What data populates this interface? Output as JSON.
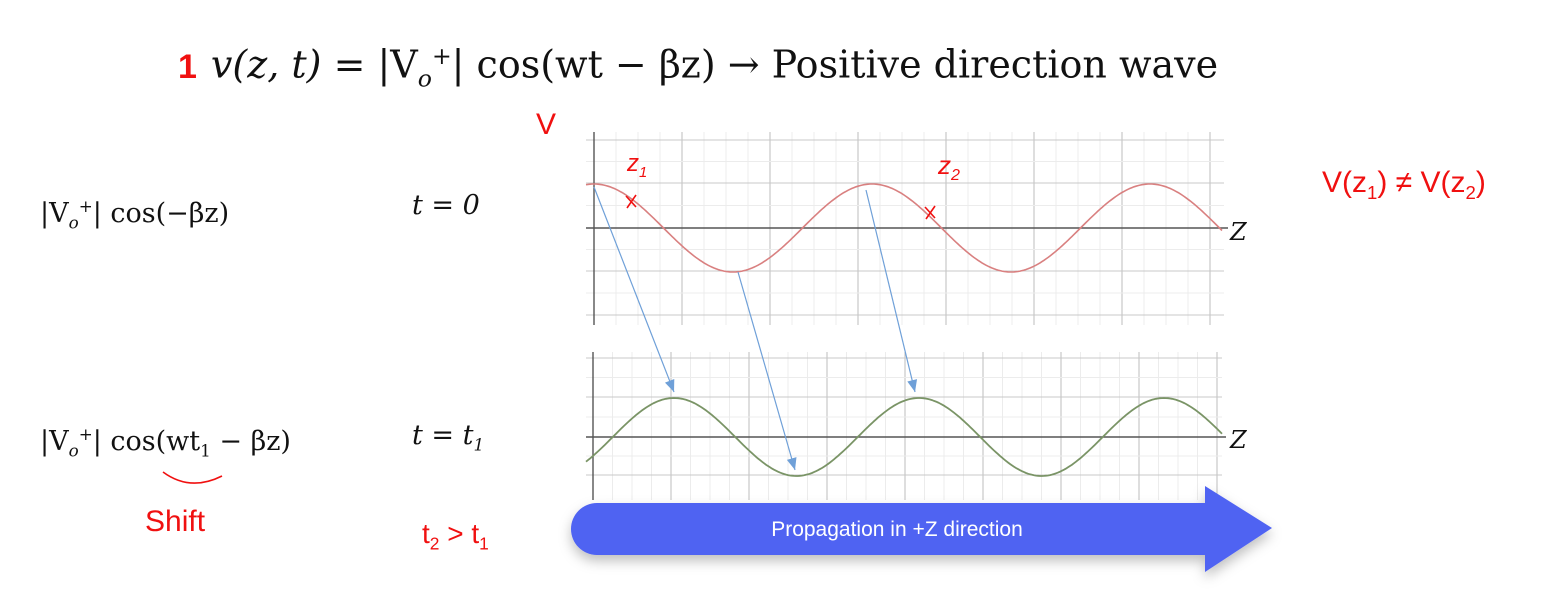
{
  "title": {
    "number": "1",
    "lhs": "v(z, t)",
    "equals": " = |V",
    "sub": "o",
    "sup": "+",
    "rhs": "| cos(wt − βz) → ",
    "description": "Positive direction wave"
  },
  "axis_label_v": "V",
  "axis_label_z": "Z",
  "rows": [
    {
      "expr_pre": "|V",
      "sub": "o",
      "sup": "+",
      "expr_post": "| cos(−βz)",
      "time": "t = 0"
    },
    {
      "expr_pre": "|V",
      "sub": "o",
      "sup": "+",
      "expr_mid": "| cos(wt",
      "expr_sub": "1",
      "expr_post": " − βz)",
      "time_pre": "t = t",
      "time_sub": "1"
    }
  ],
  "annotations": {
    "shift": "Shift",
    "t_compare": {
      "a": "t",
      "a_sub": "2",
      "op": " > ",
      "b": "t",
      "b_sub": "1"
    },
    "z1": {
      "base": "z",
      "sub": "1"
    },
    "z2": {
      "base": "z",
      "sub": "2"
    },
    "inequality": {
      "lhs": "V(z",
      "lhs_sub": "1",
      "mid": ") ≠  V(z",
      "rhs_sub": "2",
      "end": ")"
    }
  },
  "propagation_arrow": {
    "label": "Propagation in +Z direction",
    "color": "#4f63f2"
  },
  "colors": {
    "accent_red": "#f01010",
    "wave_t0": "#d98080",
    "wave_t1": "#7a9466",
    "shift_arrows": "#6fa0d8",
    "grid": "#d6d6d6",
    "axis": "#555555"
  }
}
